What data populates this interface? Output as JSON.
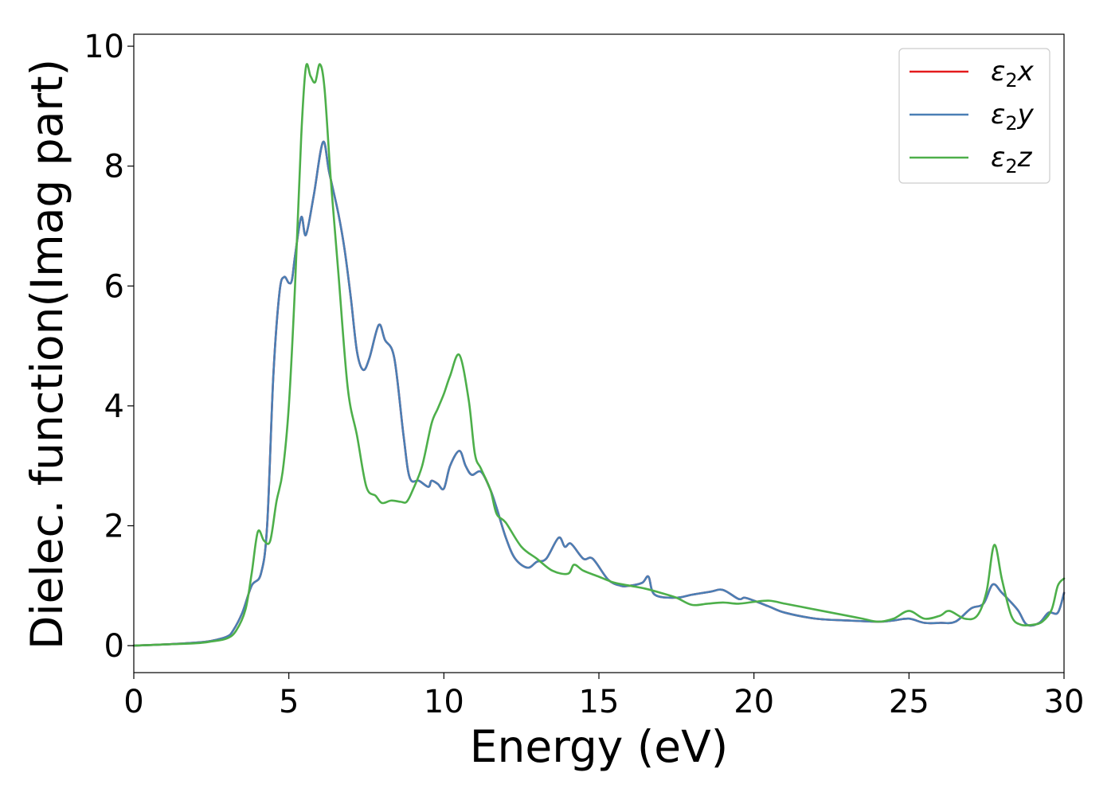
{
  "chart_data": {
    "type": "line",
    "title": "",
    "xlabel": "Energy (eV)",
    "ylabel": "Dielec. function(Imag part)",
    "xlim": [
      0,
      30
    ],
    "ylim": [
      -0.45,
      10.2
    ],
    "xticks": [
      0,
      5,
      10,
      15,
      20,
      25,
      30
    ],
    "yticks": [
      0,
      2,
      4,
      6,
      8,
      10
    ],
    "grid": false,
    "legend_position": "top-right",
    "series": [
      {
        "name": "ε₂x",
        "legend_base": "ε",
        "legend_sub": "2",
        "legend_axis": "x",
        "color": "#e41a1c",
        "x": [
          0,
          1,
          2,
          2.5,
          3,
          3.2,
          3.5,
          3.8,
          4.1,
          4.3,
          4.5,
          4.7,
          4.85,
          5.0,
          5.1,
          5.2,
          5.4,
          5.55,
          5.8,
          6.1,
          6.3,
          6.6,
          6.8,
          7.0,
          7.2,
          7.4,
          7.6,
          7.9,
          8.1,
          8.4,
          8.7,
          8.9,
          9.2,
          9.5,
          9.6,
          9.8,
          10.0,
          10.2,
          10.5,
          10.7,
          10.9,
          11.2,
          11.5,
          11.7,
          12.0,
          12.3,
          12.7,
          13.0,
          13.3,
          13.7,
          13.9,
          14.1,
          14.5,
          14.8,
          15.3,
          15.7,
          16.0,
          16.4,
          16.6,
          16.8,
          17.5,
          18.0,
          18.6,
          19.0,
          19.5,
          19.7,
          20.0,
          20.5,
          21.0,
          22.0,
          23.0,
          24.0,
          24.5,
          25.0,
          25.5,
          26.0,
          26.5,
          27.0,
          27.4,
          27.7,
          28.0,
          28.5,
          28.8,
          29.2,
          29.5,
          29.8,
          30.0
        ],
        "values": [
          0.0,
          0.02,
          0.05,
          0.08,
          0.15,
          0.25,
          0.55,
          1.0,
          1.2,
          2.0,
          4.5,
          5.9,
          6.15,
          6.05,
          6.1,
          6.5,
          7.15,
          6.85,
          7.5,
          8.4,
          7.9,
          7.2,
          6.6,
          5.8,
          4.9,
          4.6,
          4.8,
          5.35,
          5.1,
          4.8,
          3.5,
          2.8,
          2.75,
          2.65,
          2.75,
          2.7,
          2.62,
          3.0,
          3.25,
          3.0,
          2.85,
          2.9,
          2.6,
          2.3,
          1.8,
          1.45,
          1.3,
          1.4,
          1.45,
          1.8,
          1.65,
          1.7,
          1.45,
          1.45,
          1.1,
          1.0,
          1.0,
          1.05,
          1.15,
          0.85,
          0.8,
          0.85,
          0.9,
          0.93,
          0.78,
          0.8,
          0.75,
          0.65,
          0.55,
          0.45,
          0.42,
          0.4,
          0.42,
          0.45,
          0.38,
          0.38,
          0.4,
          0.62,
          0.7,
          1.02,
          0.88,
          0.6,
          0.35,
          0.38,
          0.55,
          0.55,
          0.88
        ]
      },
      {
        "name": "ε₂y",
        "legend_base": "ε",
        "legend_sub": "2",
        "legend_axis": "y",
        "color": "#4a7fb5",
        "x": [
          0,
          1,
          2,
          2.5,
          3,
          3.2,
          3.5,
          3.8,
          4.1,
          4.3,
          4.5,
          4.7,
          4.85,
          5.0,
          5.1,
          5.2,
          5.4,
          5.55,
          5.8,
          6.1,
          6.3,
          6.6,
          6.8,
          7.0,
          7.2,
          7.4,
          7.6,
          7.9,
          8.1,
          8.4,
          8.7,
          8.9,
          9.2,
          9.5,
          9.6,
          9.8,
          10.0,
          10.2,
          10.5,
          10.7,
          10.9,
          11.2,
          11.5,
          11.7,
          12.0,
          12.3,
          12.7,
          13.0,
          13.3,
          13.7,
          13.9,
          14.1,
          14.5,
          14.8,
          15.3,
          15.7,
          16.0,
          16.4,
          16.6,
          16.8,
          17.5,
          18.0,
          18.6,
          19.0,
          19.5,
          19.7,
          20.0,
          20.5,
          21.0,
          22.0,
          23.0,
          24.0,
          24.5,
          25.0,
          25.5,
          26.0,
          26.5,
          27.0,
          27.4,
          27.7,
          28.0,
          28.5,
          28.8,
          29.2,
          29.5,
          29.8,
          30.0
        ],
        "values": [
          0.0,
          0.02,
          0.05,
          0.08,
          0.15,
          0.25,
          0.55,
          1.0,
          1.2,
          2.0,
          4.5,
          5.9,
          6.15,
          6.05,
          6.1,
          6.5,
          7.15,
          6.85,
          7.5,
          8.4,
          7.9,
          7.2,
          6.6,
          5.8,
          4.9,
          4.6,
          4.8,
          5.35,
          5.1,
          4.8,
          3.5,
          2.8,
          2.75,
          2.65,
          2.75,
          2.7,
          2.62,
          3.0,
          3.25,
          3.0,
          2.85,
          2.9,
          2.6,
          2.3,
          1.8,
          1.45,
          1.3,
          1.4,
          1.45,
          1.8,
          1.65,
          1.7,
          1.45,
          1.45,
          1.1,
          1.0,
          1.0,
          1.05,
          1.15,
          0.85,
          0.8,
          0.85,
          0.9,
          0.93,
          0.78,
          0.8,
          0.75,
          0.65,
          0.55,
          0.45,
          0.42,
          0.4,
          0.42,
          0.45,
          0.38,
          0.38,
          0.4,
          0.62,
          0.7,
          1.02,
          0.88,
          0.6,
          0.35,
          0.38,
          0.55,
          0.55,
          0.88
        ]
      },
      {
        "name": "ε₂z",
        "legend_base": "ε",
        "legend_sub": "2",
        "legend_axis": "z",
        "color": "#4daf4a",
        "x": [
          0,
          1,
          2,
          2.5,
          3,
          3.3,
          3.6,
          3.8,
          4.0,
          4.2,
          4.4,
          4.6,
          4.8,
          5.0,
          5.2,
          5.4,
          5.55,
          5.7,
          5.85,
          6.0,
          6.15,
          6.35,
          6.6,
          6.9,
          7.2,
          7.5,
          7.8,
          8.0,
          8.3,
          8.6,
          8.8,
          9.0,
          9.3,
          9.6,
          9.8,
          10.0,
          10.2,
          10.5,
          10.8,
          11.0,
          11.2,
          11.5,
          11.7,
          12.0,
          12.5,
          13.0,
          13.5,
          14.0,
          14.2,
          14.5,
          15.0,
          15.5,
          16.0,
          16.5,
          17.0,
          17.5,
          18.0,
          18.5,
          19.0,
          19.5,
          20.0,
          20.5,
          21.0,
          21.5,
          22.0,
          22.5,
          23.0,
          23.5,
          24.0,
          24.5,
          25.0,
          25.5,
          26.0,
          26.3,
          26.8,
          27.2,
          27.5,
          27.75,
          28.0,
          28.3,
          28.6,
          29.0,
          29.3,
          29.6,
          29.8,
          30.0
        ],
        "values": [
          0.0,
          0.02,
          0.04,
          0.07,
          0.12,
          0.25,
          0.6,
          1.2,
          1.9,
          1.75,
          1.75,
          2.4,
          2.9,
          4.0,
          6.0,
          8.5,
          9.65,
          9.5,
          9.4,
          9.7,
          9.3,
          7.8,
          6.2,
          4.3,
          3.5,
          2.65,
          2.5,
          2.38,
          2.42,
          2.4,
          2.4,
          2.6,
          3.0,
          3.7,
          3.95,
          4.2,
          4.5,
          4.85,
          4.1,
          3.2,
          2.95,
          2.6,
          2.2,
          2.05,
          1.65,
          1.45,
          1.25,
          1.2,
          1.35,
          1.25,
          1.15,
          1.05,
          1.0,
          0.95,
          0.88,
          0.8,
          0.68,
          0.7,
          0.72,
          0.7,
          0.73,
          0.75,
          0.7,
          0.65,
          0.6,
          0.55,
          0.5,
          0.45,
          0.4,
          0.45,
          0.58,
          0.45,
          0.5,
          0.58,
          0.45,
          0.5,
          0.9,
          1.68,
          1.1,
          0.5,
          0.35,
          0.35,
          0.4,
          0.6,
          1.0,
          1.12
        ]
      }
    ]
  }
}
